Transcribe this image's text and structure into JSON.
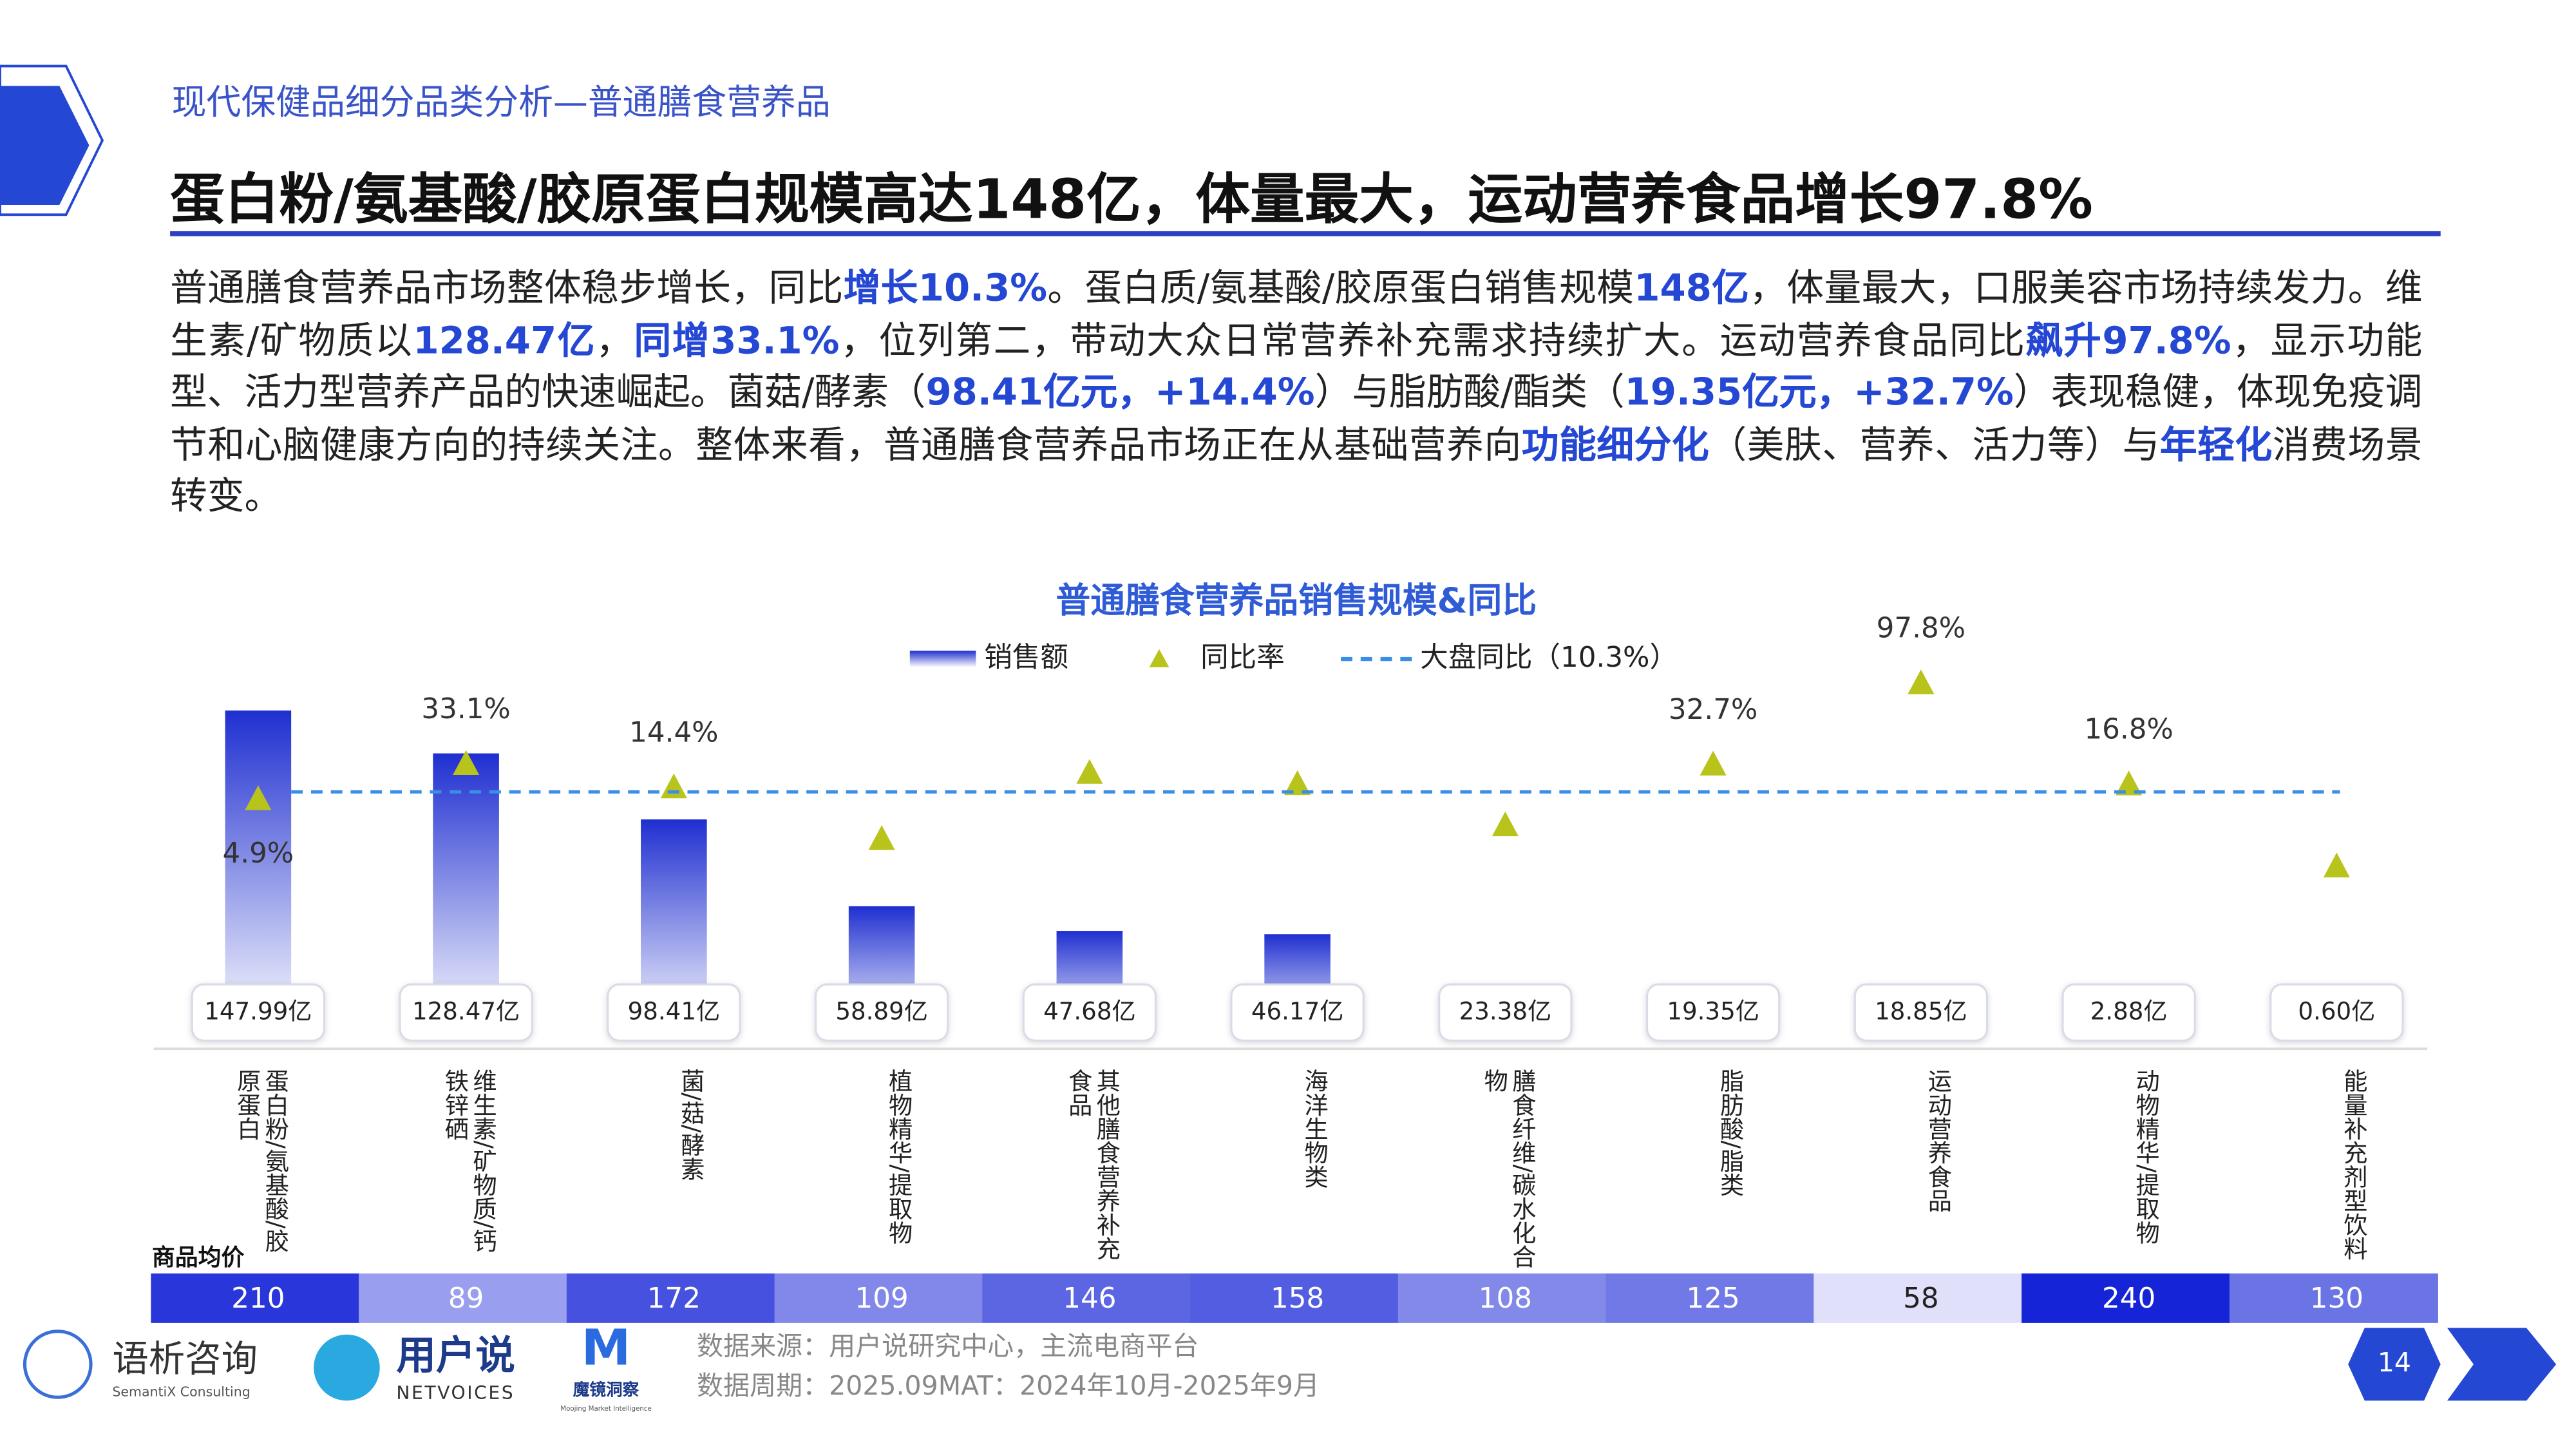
{
  "header": {
    "section": "现代保健品细分品类分析—普通膳食营养品",
    "title": "蛋白粉/氨基酸/胶原蛋白规模高达148亿，体量最大，运动营养食品增长97.8%"
  },
  "body": [
    {
      "text": "普通膳食营养品市场整体稳步增长，同比",
      "em": false
    },
    {
      "text": "增长10.3%",
      "em": true
    },
    {
      "text": "。蛋白质/氨基酸/胶原蛋白销售规模",
      "em": false
    },
    {
      "text": "148亿",
      "em": true
    },
    {
      "text": "，体量最大，口服美容市场持续发力。维生素/矿物质以",
      "em": false
    },
    {
      "text": "128.47亿",
      "em": true
    },
    {
      "text": "，",
      "em": false
    },
    {
      "text": "同增33.1%",
      "em": true
    },
    {
      "text": "，位列第二，带动大众日常营养补充需求持续扩大。运动营养食品同比",
      "em": false
    },
    {
      "text": "飙升97.8%",
      "em": true
    },
    {
      "text": "，显示功能型、活力型营养产品的快速崛起。菌菇/酵素（",
      "em": false
    },
    {
      "text": "98.41亿元，+14.4%",
      "em": true
    },
    {
      "text": "）与脂肪酸/酯类（",
      "em": false
    },
    {
      "text": "19.35亿元，+32.7%",
      "em": true
    },
    {
      "text": "）表现稳健，体现免疫调节和心脑健康方向的持续关注。整体来看，普通膳食营养品市场正在从基础营养向",
      "em": false
    },
    {
      "text": "功能细分化",
      "em": true
    },
    {
      "text": "（美肤、营养、活力等）与",
      "em": false
    },
    {
      "text": "年轻化",
      "em": true
    },
    {
      "text": "消费场景转变。",
      "em": false
    }
  ],
  "chart_data": {
    "type": "combo",
    "title": "普通膳食营养品销售规模&同比",
    "categories": [
      "蛋白粉/氨基酸/胶原蛋白",
      "维生素/矿物质/钙铁锌硒",
      "菌/菇/酵素",
      "植物精华/提取物",
      "其他膳食营养补充食品",
      "海洋生物类",
      "膳食纤维/碳水化合物",
      "脂肪酸/脂类",
      "运动营养食品",
      "动物精华/提取物",
      "能量补充剂型饮料"
    ],
    "series": [
      {
        "name": "销售额",
        "type": "bar",
        "color": "#1f2fd0",
        "values": [
          147.99,
          128.47,
          98.41,
          58.89,
          47.68,
          46.17,
          23.38,
          19.35,
          18.85,
          2.88,
          0.6
        ],
        "value_labels": [
          "147.99亿",
          "128.47亿",
          "98.41亿",
          "58.89亿",
          "47.68亿",
          "46.17亿",
          "23.38亿",
          "19.35亿",
          "18.85亿",
          "2.88亿",
          "0.60亿"
        ]
      },
      {
        "name": "同比率",
        "type": "triangle",
        "color": "#b8c41c",
        "axis": "y2",
        "values": [
          4.9,
          33.1,
          14.4,
          -27,
          26,
          17,
          -16,
          32.7,
          97.8,
          16.8,
          -49
        ],
        "value_labels": [
          "4.9%",
          "33.1%",
          "14.4%",
          null,
          null,
          null,
          null,
          "32.7%",
          "97.8%",
          "16.8%",
          null
        ]
      }
    ],
    "reference": {
      "name": "大盘同比（10.3%）",
      "value": 10.3,
      "axis": "y2",
      "color": "#3a8ee6",
      "style": "dashed"
    },
    "ylim": [
      0,
      150
    ],
    "y2lim": [
      -185,
      79
    ],
    "table": {
      "label": "商品均价",
      "values": [
        210,
        89,
        172,
        109,
        146,
        158,
        108,
        125,
        58,
        240,
        130
      ]
    }
  },
  "footer": {
    "brands": [
      "语析咨询",
      "SemantiX Consulting",
      "用户说",
      "NETVOICES",
      "魔镜洞察",
      "Moojing Market Intelligence"
    ],
    "source": "数据来源：用户说研究中心，主流电商平台",
    "period": "数据周期：2025.09MAT：2024年10月-2025年9月",
    "page": "14"
  }
}
